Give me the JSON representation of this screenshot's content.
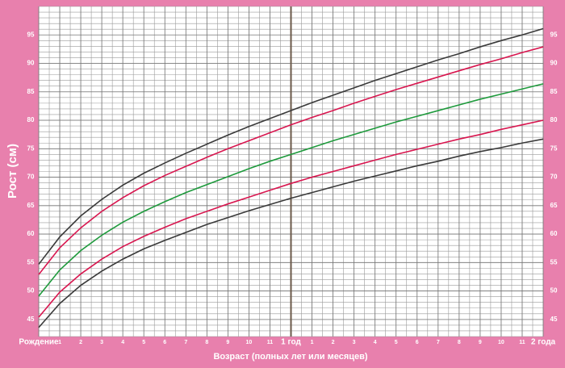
{
  "chart_data": {
    "type": "line",
    "y_label": "Рост (см)",
    "x_label": "Возраст (полных лет или месяцев)",
    "x": [
      0,
      1,
      2,
      3,
      4,
      5,
      6,
      7,
      8,
      9,
      10,
      11,
      12,
      13,
      14,
      15,
      16,
      17,
      18,
      19,
      20,
      21,
      22,
      23,
      24
    ],
    "series": [
      {
        "color": "#3a3a3a",
        "values": [
          54.7,
          59.5,
          63.2,
          66.1,
          68.6,
          70.7,
          72.5,
          74.2,
          75.8,
          77.4,
          78.9,
          80.3,
          81.7,
          83.1,
          84.4,
          85.7,
          87.0,
          88.2,
          89.4,
          90.6,
          91.7,
          92.9,
          94.0,
          95.0,
          96.1
        ]
      },
      {
        "color": "#d8164f",
        "values": [
          52.9,
          57.6,
          61.1,
          64.0,
          66.4,
          68.5,
          70.3,
          71.9,
          73.5,
          75.0,
          76.4,
          77.8,
          79.2,
          80.5,
          81.7,
          83.0,
          84.2,
          85.4,
          86.5,
          87.6,
          88.7,
          89.8,
          90.8,
          91.9,
          92.9
        ]
      },
      {
        "color": "#1e9a3c",
        "values": [
          49.1,
          53.7,
          57.1,
          59.8,
          62.1,
          64.0,
          65.7,
          67.3,
          68.7,
          70.1,
          71.5,
          72.8,
          74.0,
          75.2,
          76.4,
          77.5,
          78.6,
          79.7,
          80.7,
          81.7,
          82.7,
          83.7,
          84.6,
          85.5,
          86.4
        ]
      },
      {
        "color": "#d8164f",
        "values": [
          45.4,
          49.8,
          53.0,
          55.6,
          57.8,
          59.6,
          61.2,
          62.7,
          64.0,
          65.3,
          66.5,
          67.7,
          68.9,
          70.0,
          71.0,
          72.0,
          73.0,
          74.0,
          74.9,
          75.8,
          76.7,
          77.5,
          78.4,
          79.2,
          80.0
        ]
      },
      {
        "color": "#3a3a3a",
        "values": [
          43.6,
          47.8,
          51.0,
          53.5,
          55.6,
          57.4,
          58.9,
          60.3,
          61.7,
          62.9,
          64.1,
          65.2,
          66.3,
          67.3,
          68.3,
          69.3,
          70.2,
          71.1,
          72.0,
          72.8,
          73.7,
          74.5,
          75.2,
          76.0,
          76.7
        ]
      }
    ],
    "xlim": [
      0,
      24
    ],
    "xticks": [
      {
        "value": 0,
        "label": "Рождение"
      },
      1,
      2,
      3,
      4,
      5,
      6,
      7,
      8,
      9,
      10,
      11,
      {
        "value": 12,
        "label": "1 год"
      },
      {
        "value": 13,
        "label": "1"
      },
      {
        "value": 14,
        "label": "2"
      },
      {
        "value": 15,
        "label": "3"
      },
      {
        "value": 16,
        "label": "4"
      },
      {
        "value": 17,
        "label": "5"
      },
      {
        "value": 18,
        "label": "6"
      },
      {
        "value": 19,
        "label": "7"
      },
      {
        "value": 20,
        "label": "8"
      },
      {
        "value": 21,
        "label": "9"
      },
      {
        "value": 22,
        "label": "10"
      },
      {
        "value": 23,
        "label": "11"
      },
      {
        "value": 24,
        "label": "2 года"
      }
    ],
    "ylim": [
      42,
      100
    ],
    "yticks": [
      45,
      50,
      55,
      60,
      65,
      70,
      75,
      80,
      85,
      90,
      95
    ],
    "grid": true,
    "minor_grid_step": {
      "x": 0.5,
      "y": 1
    },
    "marker_line_x": 12,
    "background": "#e880ad"
  }
}
